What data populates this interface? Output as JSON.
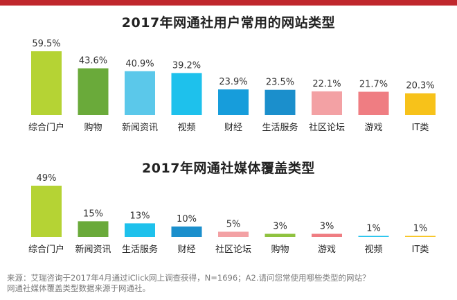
{
  "chart_data": [
    {
      "type": "bar",
      "title": "2017年网通社用户常用的网站类型",
      "categories": [
        "综合门户",
        "购物",
        "新闻资讯",
        "视频",
        "财经",
        "生活服务",
        "社区论坛",
        "游戏",
        "IT类"
      ],
      "values": [
        59.5,
        43.6,
        40.9,
        39.2,
        23.9,
        23.5,
        22.1,
        21.7,
        20.3
      ],
      "value_labels": [
        "59.5%",
        "43.6%",
        "40.9%",
        "39.2%",
        "23.9%",
        "23.5%",
        "22.1%",
        "21.7%",
        "20.3%"
      ],
      "colors": [
        "#b5d334",
        "#6aaa3a",
        "#5bc8ea",
        "#1ec1ec",
        "#179ddb",
        "#1b8fcc",
        "#f3a1a4",
        "#ef7d82",
        "#f7c21a"
      ],
      "ylim": [
        0,
        59.5
      ],
      "grid": false,
      "legend": "none"
    },
    {
      "type": "bar",
      "title": "2017年网通社媒体覆盖类型",
      "categories": [
        "综合门户",
        "新闻资讯",
        "生活服务",
        "财经",
        "社区论坛",
        "购物",
        "游戏",
        "视频",
        "IT类"
      ],
      "values": [
        49,
        15,
        13,
        10,
        5,
        3,
        3,
        1,
        1
      ],
      "value_labels": [
        "49%",
        "15%",
        "13%",
        "10%",
        "5%",
        "3%",
        "3%",
        "1%",
        "1%"
      ],
      "colors": [
        "#b5d334",
        "#6aaa3a",
        "#1ec1ec",
        "#1b8fcc",
        "#f3a1a4",
        "#8fc23f",
        "#ef7d82",
        "#1ec1ec",
        "#f7c21a"
      ],
      "ylim": [
        0,
        49
      ],
      "grid": false,
      "legend": "none"
    }
  ],
  "footnote": {
    "line1": "来源：艾瑞咨询于2017年4月通过iClick网上调查获得，N=1696；A2.请问您常使用哪些类型的网站？",
    "line2": "网通社媒体覆盖类型数据来源于网通社。"
  }
}
